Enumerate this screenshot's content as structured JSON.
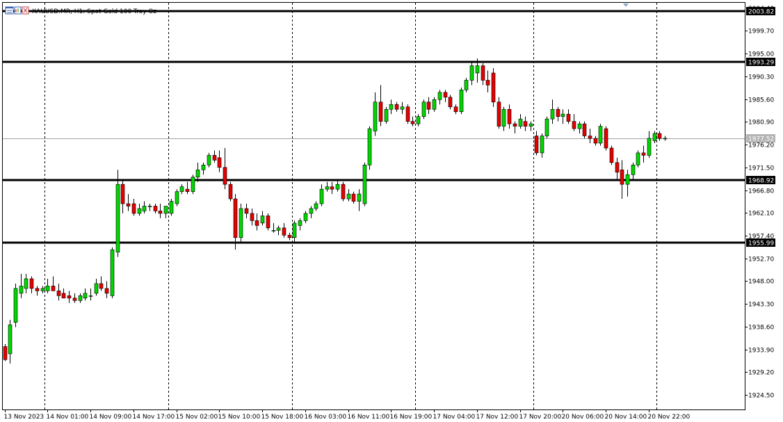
{
  "header": {
    "symbol": "XAUUSD.MR",
    "timeframe": "H1",
    "description": "Spot Gold 100 Troy Oz",
    "title_text": "XAUUSD.MR, H1:  Spot Gold 100 Troy Oz"
  },
  "colors": {
    "background": "#ffffff",
    "bull": "#00d700",
    "bear": "#e60000",
    "wick": "#000000",
    "level_line": "#000000",
    "current_price_line": "#a0a0a0",
    "current_price_badge": "#b4b4b4",
    "grid": "#000000"
  },
  "chart_data": {
    "type": "candlestick",
    "title": "XAUUSD.MR, H1:  Spot Gold 100 Troy Oz",
    "ylim": [
      1921.5,
      2005.5
    ],
    "y_ticks": [
      "1924.50",
      "1929.20",
      "1933.90",
      "1938.60",
      "1943.30",
      "1948.00",
      "1952.70",
      "1957.40",
      "1962.10",
      "1966.80",
      "1971.50",
      "1976.20",
      "1980.90",
      "1985.60",
      "1990.30",
      "1995.00",
      "1999.70"
    ],
    "x_tick_labels": [
      "13 Nov 2023",
      "14 Nov 01:00",
      "14 Nov 09:00",
      "14 Nov 17:00",
      "15 Nov 02:00",
      "15 Nov 10:00",
      "15 Nov 18:00",
      "16 Nov 03:00",
      "16 Nov 11:00",
      "16 Nov 19:00",
      "17 Nov 04:00",
      "17 Nov 12:00",
      "17 Nov 20:00",
      "20 Nov 06:00",
      "20 Nov 14:00",
      "20 Nov 22:00"
    ],
    "x_tick_index": [
      0,
      8,
      16,
      24,
      32,
      40,
      48,
      56,
      64,
      72,
      80,
      88,
      96,
      104,
      112,
      120
    ],
    "day_separators_index": [
      7.5,
      30.5,
      53.5,
      76.5,
      98.5,
      121.5
    ],
    "horizontal_levels": [
      {
        "value": 2003.82,
        "label": "2003.82"
      },
      {
        "value": 1993.29,
        "label": "1993.29"
      },
      {
        "value": 1968.92,
        "label": "1968.92"
      },
      {
        "value": 1955.99,
        "label": "1955.99"
      }
    ],
    "current_price": {
      "value": 1977.52,
      "label": "1977.52"
    },
    "partial_top_label": "2004.40",
    "candles": [
      {
        "o": 1934.5,
        "h": 1935.0,
        "l": 1931.5,
        "c": 1931.8
      },
      {
        "o": 1933.0,
        "h": 1940.0,
        "l": 1931.0,
        "c": 1939.0
      },
      {
        "o": 1939.5,
        "h": 1947.5,
        "l": 1938.5,
        "c": 1946.5
      },
      {
        "o": 1945.5,
        "h": 1949.5,
        "l": 1944.5,
        "c": 1947.0
      },
      {
        "o": 1946.5,
        "h": 1949.5,
        "l": 1945.5,
        "c": 1948.5
      },
      {
        "o": 1948.5,
        "h": 1949.0,
        "l": 1945.5,
        "c": 1946.5
      },
      {
        "o": 1946.5,
        "h": 1947.0,
        "l": 1945.0,
        "c": 1946.0
      },
      {
        "o": 1946.0,
        "h": 1947.0,
        "l": 1945.5,
        "c": 1946.5
      },
      {
        "o": 1946.0,
        "h": 1948.5,
        "l": 1945.5,
        "c": 1947.0
      },
      {
        "o": 1947.0,
        "h": 1949.0,
        "l": 1946.0,
        "c": 1946.0
      },
      {
        "o": 1946.0,
        "h": 1947.5,
        "l": 1944.0,
        "c": 1945.0
      },
      {
        "o": 1945.5,
        "h": 1946.5,
        "l": 1944.5,
        "c": 1944.5
      },
      {
        "o": 1945.0,
        "h": 1946.0,
        "l": 1943.5,
        "c": 1944.5
      },
      {
        "o": 1944.5,
        "h": 1945.5,
        "l": 1943.5,
        "c": 1944.0
      },
      {
        "o": 1944.0,
        "h": 1945.5,
        "l": 1943.5,
        "c": 1945.0
      },
      {
        "o": 1944.5,
        "h": 1946.5,
        "l": 1944.0,
        "c": 1945.5
      },
      {
        "o": 1945.0,
        "h": 1946.5,
        "l": 1944.0,
        "c": 1945.0
      },
      {
        "o": 1945.5,
        "h": 1948.5,
        "l": 1945.0,
        "c": 1947.5
      },
      {
        "o": 1947.5,
        "h": 1949.0,
        "l": 1946.0,
        "c": 1946.5
      },
      {
        "o": 1946.5,
        "h": 1948.0,
        "l": 1944.5,
        "c": 1945.5
      },
      {
        "o": 1945.0,
        "h": 1955.0,
        "l": 1944.5,
        "c": 1954.5
      },
      {
        "o": 1954.0,
        "h": 1971.0,
        "l": 1953.0,
        "c": 1968.0
      },
      {
        "o": 1968.0,
        "h": 1969.0,
        "l": 1962.0,
        "c": 1964.0
      },
      {
        "o": 1964.0,
        "h": 1966.0,
        "l": 1962.5,
        "c": 1963.5
      },
      {
        "o": 1964.0,
        "h": 1965.0,
        "l": 1961.5,
        "c": 1962.0
      },
      {
        "o": 1962.0,
        "h": 1964.0,
        "l": 1961.5,
        "c": 1963.0
      },
      {
        "o": 1962.5,
        "h": 1964.5,
        "l": 1962.0,
        "c": 1963.5
      },
      {
        "o": 1963.5,
        "h": 1964.0,
        "l": 1962.5,
        "c": 1963.5
      },
      {
        "o": 1963.5,
        "h": 1964.0,
        "l": 1962.0,
        "c": 1962.5
      },
      {
        "o": 1962.5,
        "h": 1964.0,
        "l": 1961.0,
        "c": 1962.0
      },
      {
        "o": 1962.0,
        "h": 1963.5,
        "l": 1961.0,
        "c": 1963.5
      },
      {
        "o": 1962.0,
        "h": 1965.0,
        "l": 1961.5,
        "c": 1964.5
      },
      {
        "o": 1964.0,
        "h": 1967.0,
        "l": 1963.5,
        "c": 1966.5
      },
      {
        "o": 1966.5,
        "h": 1968.0,
        "l": 1966.0,
        "c": 1967.5
      },
      {
        "o": 1967.0,
        "h": 1968.5,
        "l": 1966.0,
        "c": 1966.5
      },
      {
        "o": 1966.5,
        "h": 1970.0,
        "l": 1966.0,
        "c": 1969.5
      },
      {
        "o": 1969.5,
        "h": 1972.5,
        "l": 1968.5,
        "c": 1971.0
      },
      {
        "o": 1971.0,
        "h": 1972.5,
        "l": 1970.0,
        "c": 1972.0
      },
      {
        "o": 1972.0,
        "h": 1974.5,
        "l": 1971.5,
        "c": 1974.0
      },
      {
        "o": 1974.0,
        "h": 1975.0,
        "l": 1972.5,
        "c": 1973.0
      },
      {
        "o": 1973.5,
        "h": 1975.0,
        "l": 1970.5,
        "c": 1971.5
      },
      {
        "o": 1971.5,
        "h": 1975.5,
        "l": 1967.0,
        "c": 1968.0
      },
      {
        "o": 1968.0,
        "h": 1968.5,
        "l": 1964.5,
        "c": 1965.0
      },
      {
        "o": 1965.0,
        "h": 1966.0,
        "l": 1954.5,
        "c": 1957.0
      },
      {
        "o": 1957.0,
        "h": 1964.0,
        "l": 1956.0,
        "c": 1963.0
      },
      {
        "o": 1963.0,
        "h": 1964.0,
        "l": 1961.0,
        "c": 1962.0
      },
      {
        "o": 1962.0,
        "h": 1963.0,
        "l": 1959.5,
        "c": 1960.5
      },
      {
        "o": 1960.5,
        "h": 1962.0,
        "l": 1958.5,
        "c": 1959.5
      },
      {
        "o": 1960.0,
        "h": 1962.5,
        "l": 1959.5,
        "c": 1961.5
      },
      {
        "o": 1961.5,
        "h": 1962.0,
        "l": 1958.5,
        "c": 1959.0
      },
      {
        "o": 1958.5,
        "h": 1960.0,
        "l": 1958.0,
        "c": 1958.5
      },
      {
        "o": 1958.5,
        "h": 1959.5,
        "l": 1957.5,
        "c": 1959.0
      },
      {
        "o": 1959.0,
        "h": 1960.0,
        "l": 1957.0,
        "c": 1957.5
      },
      {
        "o": 1957.5,
        "h": 1958.0,
        "l": 1956.5,
        "c": 1957.0
      },
      {
        "o": 1957.0,
        "h": 1960.5,
        "l": 1956.0,
        "c": 1960.0
      },
      {
        "o": 1959.5,
        "h": 1961.0,
        "l": 1958.5,
        "c": 1960.5
      },
      {
        "o": 1960.5,
        "h": 1962.5,
        "l": 1960.0,
        "c": 1962.0
      },
      {
        "o": 1962.0,
        "h": 1963.5,
        "l": 1961.0,
        "c": 1963.0
      },
      {
        "o": 1963.0,
        "h": 1964.5,
        "l": 1962.5,
        "c": 1964.0
      },
      {
        "o": 1964.0,
        "h": 1968.0,
        "l": 1963.5,
        "c": 1967.0
      },
      {
        "o": 1967.0,
        "h": 1968.5,
        "l": 1966.5,
        "c": 1967.5
      },
      {
        "o": 1967.5,
        "h": 1968.5,
        "l": 1966.0,
        "c": 1967.0
      },
      {
        "o": 1967.0,
        "h": 1969.0,
        "l": 1966.5,
        "c": 1968.0
      },
      {
        "o": 1968.0,
        "h": 1968.5,
        "l": 1964.5,
        "c": 1965.0
      },
      {
        "o": 1965.0,
        "h": 1967.0,
        "l": 1964.5,
        "c": 1966.0
      },
      {
        "o": 1966.0,
        "h": 1966.5,
        "l": 1964.0,
        "c": 1964.5
      },
      {
        "o": 1964.5,
        "h": 1967.0,
        "l": 1962.5,
        "c": 1966.0
      },
      {
        "o": 1964.0,
        "h": 1972.5,
        "l": 1963.5,
        "c": 1972.0
      },
      {
        "o": 1972.0,
        "h": 1980.0,
        "l": 1971.0,
        "c": 1979.5
      },
      {
        "o": 1979.0,
        "h": 1987.0,
        "l": 1978.0,
        "c": 1985.0
      },
      {
        "o": 1985.0,
        "h": 1988.5,
        "l": 1980.0,
        "c": 1981.0
      },
      {
        "o": 1981.0,
        "h": 1984.0,
        "l": 1980.5,
        "c": 1983.5
      },
      {
        "o": 1983.5,
        "h": 1985.5,
        "l": 1982.5,
        "c": 1984.5
      },
      {
        "o": 1984.5,
        "h": 1985.0,
        "l": 1983.0,
        "c": 1983.5
      },
      {
        "o": 1983.5,
        "h": 1985.0,
        "l": 1982.5,
        "c": 1984.0
      },
      {
        "o": 1984.0,
        "h": 1984.5,
        "l": 1980.5,
        "c": 1981.0
      },
      {
        "o": 1981.0,
        "h": 1982.0,
        "l": 1980.0,
        "c": 1980.5
      },
      {
        "o": 1980.5,
        "h": 1982.5,
        "l": 1980.0,
        "c": 1982.0
      },
      {
        "o": 1982.0,
        "h": 1985.5,
        "l": 1981.5,
        "c": 1985.0
      },
      {
        "o": 1985.0,
        "h": 1986.0,
        "l": 1982.5,
        "c": 1983.5
      },
      {
        "o": 1983.5,
        "h": 1986.0,
        "l": 1983.0,
        "c": 1985.5
      },
      {
        "o": 1985.5,
        "h": 1987.5,
        "l": 1984.5,
        "c": 1987.0
      },
      {
        "o": 1987.0,
        "h": 1987.5,
        "l": 1985.0,
        "c": 1986.0
      },
      {
        "o": 1986.0,
        "h": 1986.5,
        "l": 1983.5,
        "c": 1984.0
      },
      {
        "o": 1984.0,
        "h": 1984.5,
        "l": 1982.5,
        "c": 1983.0
      },
      {
        "o": 1983.0,
        "h": 1988.0,
        "l": 1982.5,
        "c": 1987.5
      },
      {
        "o": 1987.5,
        "h": 1990.0,
        "l": 1987.0,
        "c": 1989.5
      },
      {
        "o": 1989.5,
        "h": 1993.5,
        "l": 1988.5,
        "c": 1992.5
      },
      {
        "o": 1991.0,
        "h": 1994.0,
        "l": 1989.0,
        "c": 1992.5
      },
      {
        "o": 1992.5,
        "h": 1993.0,
        "l": 1988.5,
        "c": 1989.5
      },
      {
        "o": 1989.5,
        "h": 1991.5,
        "l": 1987.0,
        "c": 1988.5
      },
      {
        "o": 1991.0,
        "h": 1992.0,
        "l": 1984.0,
        "c": 1985.0
      },
      {
        "o": 1985.0,
        "h": 1986.0,
        "l": 1979.5,
        "c": 1980.0
      },
      {
        "o": 1980.0,
        "h": 1984.0,
        "l": 1979.0,
        "c": 1983.5
      },
      {
        "o": 1983.5,
        "h": 1984.5,
        "l": 1979.5,
        "c": 1980.5
      },
      {
        "o": 1980.5,
        "h": 1981.0,
        "l": 1978.5,
        "c": 1980.0
      },
      {
        "o": 1980.0,
        "h": 1982.5,
        "l": 1979.5,
        "c": 1981.5
      },
      {
        "o": 1981.0,
        "h": 1982.0,
        "l": 1979.0,
        "c": 1980.0
      },
      {
        "o": 1980.0,
        "h": 1981.0,
        "l": 1979.0,
        "c": 1980.5
      },
      {
        "o": 1978.0,
        "h": 1979.0,
        "l": 1974.0,
        "c": 1974.5
      },
      {
        "o": 1974.5,
        "h": 1978.5,
        "l": 1973.5,
        "c": 1978.0
      },
      {
        "o": 1978.0,
        "h": 1982.0,
        "l": 1977.5,
        "c": 1981.5
      },
      {
        "o": 1981.5,
        "h": 1985.5,
        "l": 1980.5,
        "c": 1983.5
      },
      {
        "o": 1983.5,
        "h": 1984.0,
        "l": 1981.0,
        "c": 1982.0
      },
      {
        "o": 1982.0,
        "h": 1983.5,
        "l": 1980.5,
        "c": 1982.5
      },
      {
        "o": 1982.5,
        "h": 1983.5,
        "l": 1980.5,
        "c": 1981.0
      },
      {
        "o": 1981.0,
        "h": 1982.5,
        "l": 1979.0,
        "c": 1979.5
      },
      {
        "o": 1979.5,
        "h": 1981.0,
        "l": 1978.5,
        "c": 1980.5
      },
      {
        "o": 1980.5,
        "h": 1981.0,
        "l": 1977.5,
        "c": 1978.0
      },
      {
        "o": 1978.0,
        "h": 1979.5,
        "l": 1976.5,
        "c": 1977.5
      },
      {
        "o": 1977.5,
        "h": 1978.0,
        "l": 1976.0,
        "c": 1976.5
      },
      {
        "o": 1976.5,
        "h": 1980.5,
        "l": 1976.0,
        "c": 1980.0
      },
      {
        "o": 1979.5,
        "h": 1980.0,
        "l": 1975.0,
        "c": 1975.5
      },
      {
        "o": 1975.5,
        "h": 1976.0,
        "l": 1972.0,
        "c": 1972.5
      },
      {
        "o": 1972.5,
        "h": 1973.5,
        "l": 1969.0,
        "c": 1970.5
      },
      {
        "o": 1971.0,
        "h": 1973.0,
        "l": 1965.0,
        "c": 1968.0
      },
      {
        "o": 1968.0,
        "h": 1971.0,
        "l": 1965.5,
        "c": 1970.0
      },
      {
        "o": 1970.0,
        "h": 1972.5,
        "l": 1969.0,
        "c": 1972.0
      },
      {
        "o": 1972.0,
        "h": 1975.0,
        "l": 1971.5,
        "c": 1974.5
      },
      {
        "o": 1974.5,
        "h": 1976.0,
        "l": 1972.5,
        "c": 1974.0
      },
      {
        "o": 1974.0,
        "h": 1979.0,
        "l": 1973.5,
        "c": 1977.5
      },
      {
        "o": 1977.0,
        "h": 1979.0,
        "l": 1976.5,
        "c": 1978.5
      },
      {
        "o": 1978.5,
        "h": 1979.0,
        "l": 1977.0,
        "c": 1977.5
      },
      {
        "o": 1977.5,
        "h": 1978.0,
        "l": 1977.0,
        "c": 1977.52
      }
    ]
  }
}
